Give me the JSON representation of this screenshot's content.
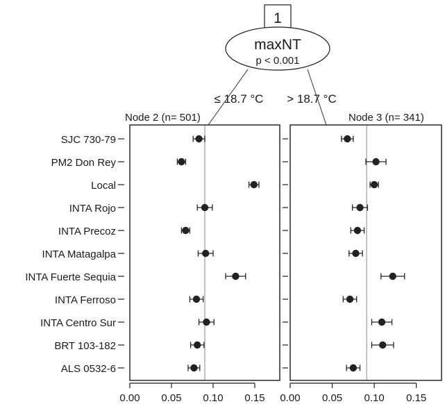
{
  "tree": {
    "node_id": "1",
    "split_variable": "maxNT",
    "p_value": "p < 0.001",
    "edge_left": "≤ 18.7 °C",
    "edge_right": "> 18.7 °C"
  },
  "chart_data": {
    "type": "scatter",
    "categories": [
      "SJC 730-79",
      "PM2 Don Rey",
      "Local",
      "INTA Rojo",
      "INTA Precoz",
      "INTA Matagalpa",
      "INTA Fuerte Sequia",
      "INTA Ferroso",
      "INTA Centro Sur",
      "BRT 103-182",
      "ALS 0532-6"
    ],
    "xlim": [
      0,
      0.18
    ],
    "xticks": [
      "0.00",
      "0.05",
      "0.10",
      "0.15"
    ],
    "grid": false,
    "panels": [
      {
        "title": "Node 2 (n= 501)",
        "ref_line": 0.09,
        "values": [
          0.083,
          0.062,
          0.149,
          0.09,
          0.067,
          0.091,
          0.127,
          0.08,
          0.092,
          0.081,
          0.077
        ],
        "lower": [
          0.076,
          0.057,
          0.143,
          0.081,
          0.062,
          0.082,
          0.115,
          0.072,
          0.083,
          0.073,
          0.07
        ],
        "upper": [
          0.09,
          0.067,
          0.155,
          0.099,
          0.072,
          0.1,
          0.139,
          0.088,
          0.101,
          0.089,
          0.084
        ]
      },
      {
        "title": "Node 3 (n= 341)",
        "ref_line": 0.091,
        "values": [
          0.068,
          0.102,
          0.1,
          0.083,
          0.08,
          0.078,
          0.122,
          0.071,
          0.109,
          0.11,
          0.075
        ],
        "lower": [
          0.061,
          0.09,
          0.095,
          0.074,
          0.072,
          0.07,
          0.108,
          0.063,
          0.097,
          0.097,
          0.067
        ],
        "upper": [
          0.075,
          0.114,
          0.105,
          0.092,
          0.088,
          0.086,
          0.136,
          0.079,
          0.121,
          0.123,
          0.083
        ]
      }
    ]
  },
  "colors": {
    "marker": "#222222",
    "ref_line": "#b4b4b4",
    "frame": "#1a1a1a",
    "connector": "#555555"
  }
}
